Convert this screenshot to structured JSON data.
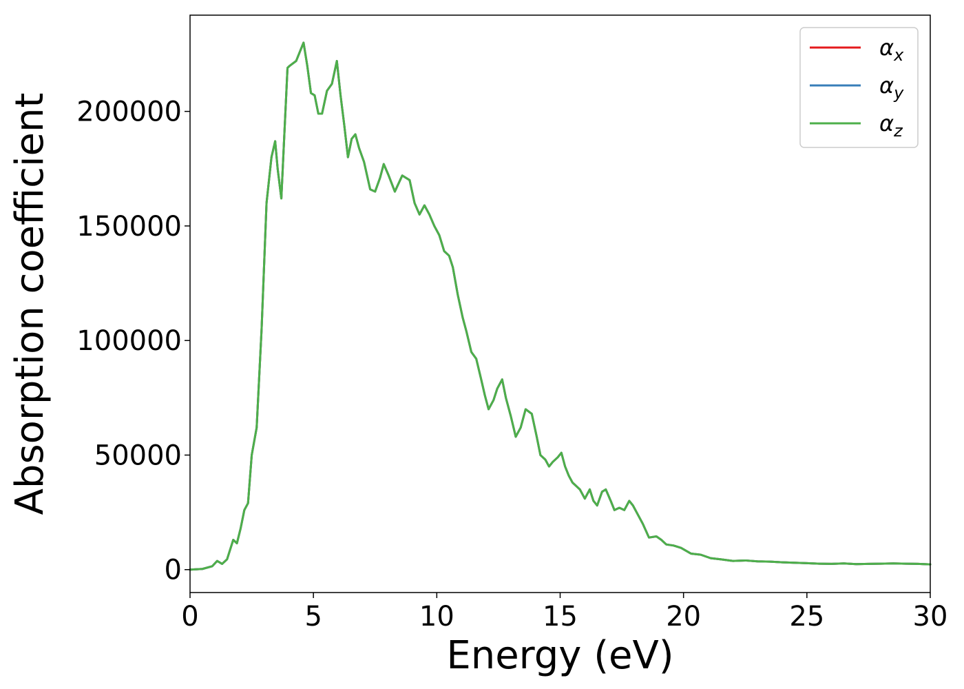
{
  "chart_data": {
    "type": "line",
    "title": "",
    "xlabel": "Energy (eV)",
    "ylabel": "Absorption coefficient",
    "xlim": [
      0,
      30
    ],
    "ylim": [
      -10000,
      242000
    ],
    "xticks": [
      0,
      5,
      10,
      15,
      20,
      25,
      30
    ],
    "yticks": [
      0,
      50000,
      100000,
      150000,
      200000
    ],
    "xtick_labels": [
      "0",
      "5",
      "10",
      "15",
      "20",
      "25",
      "30"
    ],
    "ytick_labels": [
      "0",
      "50000",
      "100000",
      "150000",
      "200000"
    ],
    "grid": false,
    "legend": {
      "placement": "top-right"
    },
    "x": [
      0,
      0.5,
      0.9,
      1.1,
      1.3,
      1.5,
      1.75,
      1.9,
      2.05,
      2.2,
      2.35,
      2.5,
      2.7,
      2.9,
      3.1,
      3.3,
      3.45,
      3.55,
      3.7,
      3.8,
      3.95,
      4.05,
      4.3,
      4.45,
      4.6,
      4.75,
      4.9,
      5.05,
      5.2,
      5.35,
      5.55,
      5.75,
      5.95,
      6.1,
      6.25,
      6.4,
      6.55,
      6.7,
      6.85,
      7.05,
      7.3,
      7.5,
      7.7,
      7.85,
      8.05,
      8.3,
      8.6,
      8.9,
      9.1,
      9.3,
      9.5,
      9.7,
      9.9,
      10.1,
      10.3,
      10.5,
      10.65,
      10.85,
      11.05,
      11.2,
      11.4,
      11.6,
      11.8,
      11.95,
      12.1,
      12.3,
      12.45,
      12.65,
      12.8,
      13.0,
      13.2,
      13.4,
      13.6,
      13.85,
      14.05,
      14.2,
      14.4,
      14.55,
      14.7,
      14.9,
      15.05,
      15.2,
      15.35,
      15.5,
      15.8,
      16.0,
      16.2,
      16.35,
      16.5,
      16.7,
      16.85,
      17.05,
      17.2,
      17.4,
      17.6,
      17.8,
      17.95,
      18.15,
      18.35,
      18.6,
      18.9,
      19.1,
      19.3,
      19.6,
      19.9,
      20.3,
      20.7,
      21.1,
      21.5,
      22.0,
      22.5,
      23.0,
      23.5,
      24.0,
      24.5,
      25.0,
      25.5,
      26.0,
      26.5,
      27.0,
      27.5,
      28.0,
      28.5,
      29.0,
      29.5,
      30.0
    ],
    "series": [
      {
        "name": "αx",
        "label_base": "α",
        "label_sub": "x",
        "color": "#e41a1c",
        "y": [
          0,
          300,
          1500,
          3800,
          2500,
          4500,
          13000,
          11500,
          18000,
          26000,
          29000,
          50000,
          62000,
          105000,
          160000,
          180000,
          187000,
          175000,
          162000,
          185000,
          219000,
          220000,
          222000,
          226000,
          230000,
          220000,
          208000,
          207000,
          199000,
          199000,
          209000,
          212000,
          222000,
          207000,
          194000,
          180000,
          188000,
          190000,
          184000,
          178000,
          166000,
          165000,
          171000,
          177000,
          172000,
          165000,
          172000,
          170000,
          160000,
          155000,
          159000,
          155000,
          150000,
          146000,
          139000,
          137000,
          132000,
          120000,
          110000,
          104000,
          95000,
          92000,
          83000,
          76000,
          70000,
          74000,
          79000,
          83000,
          75000,
          67000,
          58000,
          62000,
          70000,
          68000,
          58000,
          50000,
          48000,
          45000,
          47000,
          49000,
          51000,
          45000,
          41000,
          38000,
          35000,
          31000,
          35000,
          30000,
          28000,
          34000,
          35000,
          30000,
          26000,
          27000,
          26000,
          30000,
          28000,
          24000,
          20000,
          14000,
          14500,
          13000,
          11000,
          10500,
          9500,
          7000,
          6500,
          5000,
          4500,
          3800,
          4000,
          3600,
          3500,
          3200,
          3000,
          2800,
          2600,
          2500,
          2700,
          2400,
          2500,
          2600,
          2700,
          2600,
          2500,
          2300
        ]
      },
      {
        "name": "αy",
        "label_base": "α",
        "label_sub": "y",
        "color": "#377eb8",
        "y": [
          0,
          300,
          1500,
          3800,
          2500,
          4500,
          13000,
          11500,
          18000,
          26000,
          29000,
          50000,
          62000,
          105000,
          160000,
          180000,
          187000,
          175000,
          162000,
          185000,
          219000,
          220000,
          222000,
          226000,
          230000,
          220000,
          208000,
          207000,
          199000,
          199000,
          209000,
          212000,
          222000,
          207000,
          194000,
          180000,
          188000,
          190000,
          184000,
          178000,
          166000,
          165000,
          171000,
          177000,
          172000,
          165000,
          172000,
          170000,
          160000,
          155000,
          159000,
          155000,
          150000,
          146000,
          139000,
          137000,
          132000,
          120000,
          110000,
          104000,
          95000,
          92000,
          83000,
          76000,
          70000,
          74000,
          79000,
          83000,
          75000,
          67000,
          58000,
          62000,
          70000,
          68000,
          58000,
          50000,
          48000,
          45000,
          47000,
          49000,
          51000,
          45000,
          41000,
          38000,
          35000,
          31000,
          35000,
          30000,
          28000,
          34000,
          35000,
          30000,
          26000,
          27000,
          26000,
          30000,
          28000,
          24000,
          20000,
          14000,
          14500,
          13000,
          11000,
          10500,
          9500,
          7000,
          6500,
          5000,
          4500,
          3800,
          4000,
          3600,
          3500,
          3200,
          3000,
          2800,
          2600,
          2500,
          2700,
          2400,
          2500,
          2600,
          2700,
          2600,
          2500,
          2300
        ]
      },
      {
        "name": "αz",
        "label_base": "α",
        "label_sub": "z",
        "color": "#4daf4a",
        "y": [
          0,
          300,
          1500,
          3800,
          2500,
          4500,
          13000,
          11500,
          18000,
          26000,
          29000,
          50000,
          62000,
          105000,
          160000,
          180000,
          187000,
          175000,
          162000,
          185000,
          219000,
          220000,
          222000,
          226000,
          230000,
          220000,
          208000,
          207000,
          199000,
          199000,
          209000,
          212000,
          222000,
          207000,
          194000,
          180000,
          188000,
          190000,
          184000,
          178000,
          166000,
          165000,
          171000,
          177000,
          172000,
          165000,
          172000,
          170000,
          160000,
          155000,
          159000,
          155000,
          150000,
          146000,
          139000,
          137000,
          132000,
          120000,
          110000,
          104000,
          95000,
          92000,
          83000,
          76000,
          70000,
          74000,
          79000,
          83000,
          75000,
          67000,
          58000,
          62000,
          70000,
          68000,
          58000,
          50000,
          48000,
          45000,
          47000,
          49000,
          51000,
          45000,
          41000,
          38000,
          35000,
          31000,
          35000,
          30000,
          28000,
          34000,
          35000,
          30000,
          26000,
          27000,
          26000,
          30000,
          28000,
          24000,
          20000,
          14000,
          14500,
          13000,
          11000,
          10500,
          9500,
          7000,
          6500,
          5000,
          4500,
          3800,
          4000,
          3600,
          3500,
          3200,
          3000,
          2800,
          2600,
          2500,
          2700,
          2400,
          2500,
          2600,
          2700,
          2600,
          2500,
          2300
        ]
      }
    ]
  }
}
